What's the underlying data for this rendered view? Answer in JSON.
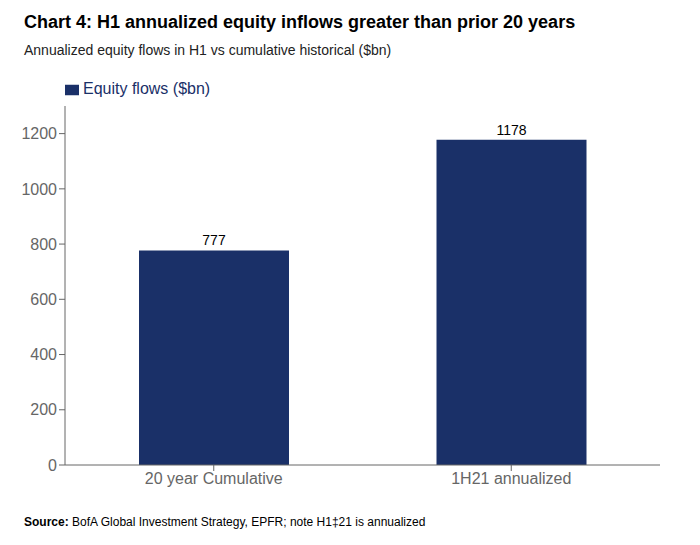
{
  "chart_data": {
    "type": "bar",
    "title": "Chart 4: H1 annualized equity inflows greater than prior 20 years",
    "subtitle": "Annualized equity flows in H1 vs cumulative historical ($bn)",
    "categories": [
      "20 year Cumulative",
      "1H21 annualized"
    ],
    "series": [
      {
        "name": "Equity flows ($bn)",
        "color": "#1a3068",
        "values": [
          777,
          1178
        ]
      }
    ],
    "ylim": [
      0,
      1300
    ],
    "yticks": [
      0,
      200,
      400,
      600,
      800,
      1000,
      1200
    ],
    "grid": false,
    "legend": "upper left",
    "data_labels": true,
    "annotations": [
      "Source:",
      "BofA Global Investment Strategy, EPFR; note H1‡21 is annualized"
    ]
  }
}
